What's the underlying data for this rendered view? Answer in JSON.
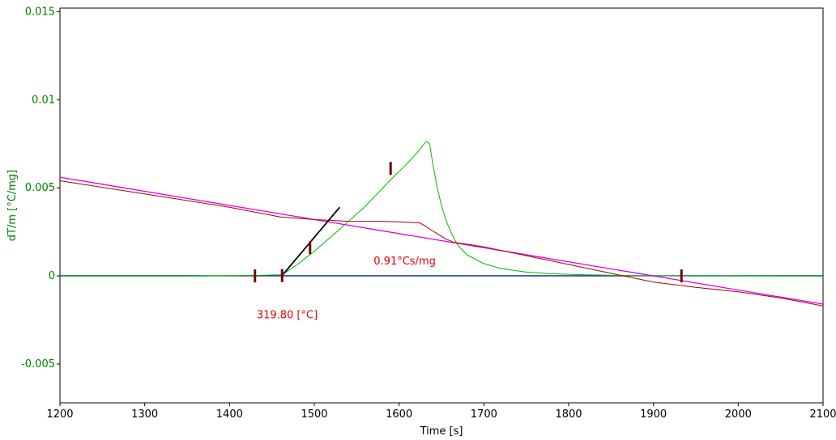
{
  "chart_data": {
    "type": "line",
    "title": "",
    "xlabel": "Time [s]",
    "ylabel": "dT/m  [°C/mg]",
    "xlim": [
      1200,
      2100
    ],
    "ylim": [
      -0.0072,
      0.0152
    ],
    "x_ticks": [
      1200,
      1300,
      1400,
      1500,
      1600,
      1700,
      1800,
      1900,
      2000,
      2100
    ],
    "y_ticks": [
      {
        "value": -0.005,
        "label": "-0.005"
      },
      {
        "value": 0,
        "label": "0"
      },
      {
        "value": 0.005,
        "label": "0.005"
      },
      {
        "value": 0.01,
        "label": "0.01"
      },
      {
        "value": 0.015,
        "label": "0.015"
      }
    ],
    "colors": {
      "signal": "#00bb00",
      "integral": "#aa0000",
      "regression": "#dd00dd",
      "zero_line": "#0000aa",
      "baseline": "#006666",
      "onset_tangent": "#000000",
      "markers": "#7a0000",
      "annotation": "#e00000",
      "y_axis_text": "#008000"
    },
    "series": [
      {
        "key": "signal",
        "x": [
          1200,
          1350,
          1430,
          1462,
          1480,
          1500,
          1530,
          1560,
          1590,
          1610,
          1625,
          1632,
          1636,
          1640,
          1645,
          1650,
          1655,
          1660,
          1665,
          1670,
          1680,
          1700,
          1720,
          1750,
          1780,
          1820,
          1870,
          1930,
          2100
        ],
        "y": [
          -1e-05,
          -1e-05,
          3e-05,
          6e-05,
          0.00065,
          0.0014,
          0.00265,
          0.00395,
          0.00545,
          0.0064,
          0.0072,
          0.00765,
          0.0075,
          0.0063,
          0.005,
          0.004,
          0.0032,
          0.0026,
          0.0021,
          0.0017,
          0.0012,
          0.0007,
          0.00042,
          0.00022,
          0.00012,
          6e-05,
          2e-05,
          0.0,
          -1e-05
        ]
      },
      {
        "key": "integral",
        "x": [
          1200,
          1300,
          1400,
          1460,
          1500,
          1540,
          1580,
          1610,
          1625,
          1632,
          1638,
          1645,
          1655,
          1665,
          1680,
          1700,
          1750,
          1800,
          1850,
          1900,
          1950,
          2000,
          2050,
          2100
        ],
        "y": [
          0.0054,
          0.00465,
          0.0039,
          0.00335,
          0.0032,
          0.0031,
          0.0031,
          0.00305,
          0.003,
          0.0028,
          0.0026,
          0.0024,
          0.0021,
          0.0019,
          0.0018,
          0.00165,
          0.00115,
          0.00065,
          0.00015,
          -0.00035,
          -0.00065,
          -0.0009,
          -0.00125,
          -0.0017
        ]
      },
      {
        "key": "regression",
        "x": [
          1200,
          2100
        ],
        "y": [
          0.0056,
          -0.0016
        ]
      },
      {
        "key": "zero_line",
        "x": [
          1200,
          2100
        ],
        "y": [
          0,
          0
        ]
      },
      {
        "key": "baseline",
        "x": [
          1200,
          2100
        ],
        "y": [
          2e-05,
          2e-05
        ]
      },
      {
        "key": "onset_tangent",
        "x": [
          1462,
          1530
        ],
        "y": [
          2e-05,
          0.0039
        ]
      }
    ],
    "markers": [
      {
        "x": 1430,
        "y": 0.0
      },
      {
        "x": 1462,
        "y": 2e-05
      },
      {
        "x": 1495,
        "y": 0.0016
      },
      {
        "x": 1590,
        "y": 0.0061
      },
      {
        "x": 1933,
        "y": 0.0
      }
    ],
    "annotations": [
      {
        "text": "0.91°Cs/mg",
        "x": 1570,
        "y": 0.00065
      },
      {
        "text": "319.80 [°C]",
        "x": 1432,
        "y": -0.0024
      }
    ]
  }
}
